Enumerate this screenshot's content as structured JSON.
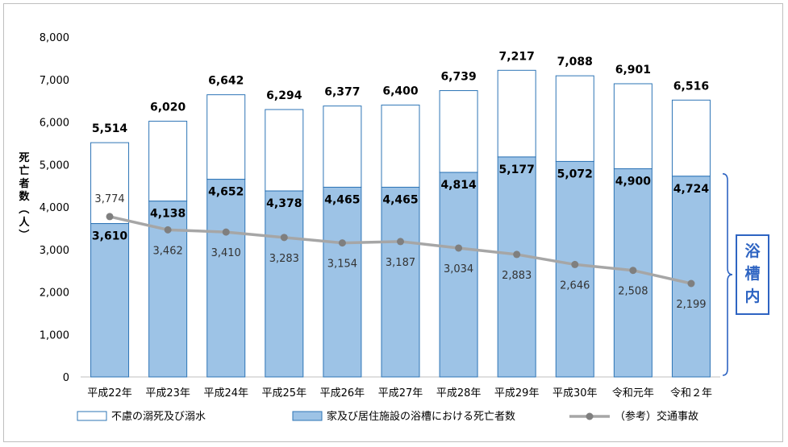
{
  "chart_data": {
    "type": "bar",
    "stacked": true,
    "categories": [
      "平成22年",
      "平成23年",
      "平成24年",
      "平成25年",
      "平成26年",
      "平成27年",
      "平成28年",
      "平成29年",
      "平成30年",
      "令和元年",
      "令和２年"
    ],
    "y_axis_label": "死亡者数（人）",
    "ylim": [
      0,
      8000
    ],
    "yticks": [
      0,
      1000,
      2000,
      3000,
      4000,
      5000,
      6000,
      7000,
      8000
    ],
    "ytick_labels": [
      "0",
      "1,000",
      "2,000",
      "3,000",
      "4,000",
      "5,000",
      "6,000",
      "7,000",
      "8,000"
    ],
    "series": [
      {
        "name": "家及び居住施設の浴槽における死亡者数",
        "type": "bar",
        "color": "#9dc3e6",
        "values": [
          3610,
          4138,
          4652,
          4378,
          4465,
          4465,
          4814,
          5177,
          5072,
          4900,
          4724
        ],
        "labels": [
          "3,610",
          "4,138",
          "4,652",
          "4,378",
          "4,465",
          "4,465",
          "4,814",
          "5,177",
          "5,072",
          "4,900",
          "4,724"
        ]
      },
      {
        "name": "不慮の溺死及び溺水",
        "type": "bar",
        "color": "#ffffff",
        "edge": "#2e75b6",
        "totals": [
          5514,
          6020,
          6642,
          6294,
          6377,
          6400,
          6739,
          7217,
          7088,
          6901,
          6516
        ],
        "labels": [
          "5,514",
          "6,020",
          "6,642",
          "6,294",
          "6,377",
          "6,400",
          "6,739",
          "7,217",
          "7,088",
          "6,901",
          "6,516"
        ]
      },
      {
        "name": "（参考）交通事故",
        "type": "line",
        "color": "#a6a6a6",
        "values": [
          3774,
          3462,
          3410,
          3283,
          3154,
          3187,
          3034,
          2883,
          2646,
          2508,
          2199
        ],
        "labels": [
          "3,774",
          "3,462",
          "3,410",
          "3,283",
          "3,154",
          "3,187",
          "3,034",
          "2,883",
          "2,646",
          "2,508",
          "2,199"
        ]
      }
    ],
    "annotation": {
      "text": "浴槽内",
      "color": "#2e64c2"
    },
    "legend_position": "bottom",
    "grid": false
  }
}
